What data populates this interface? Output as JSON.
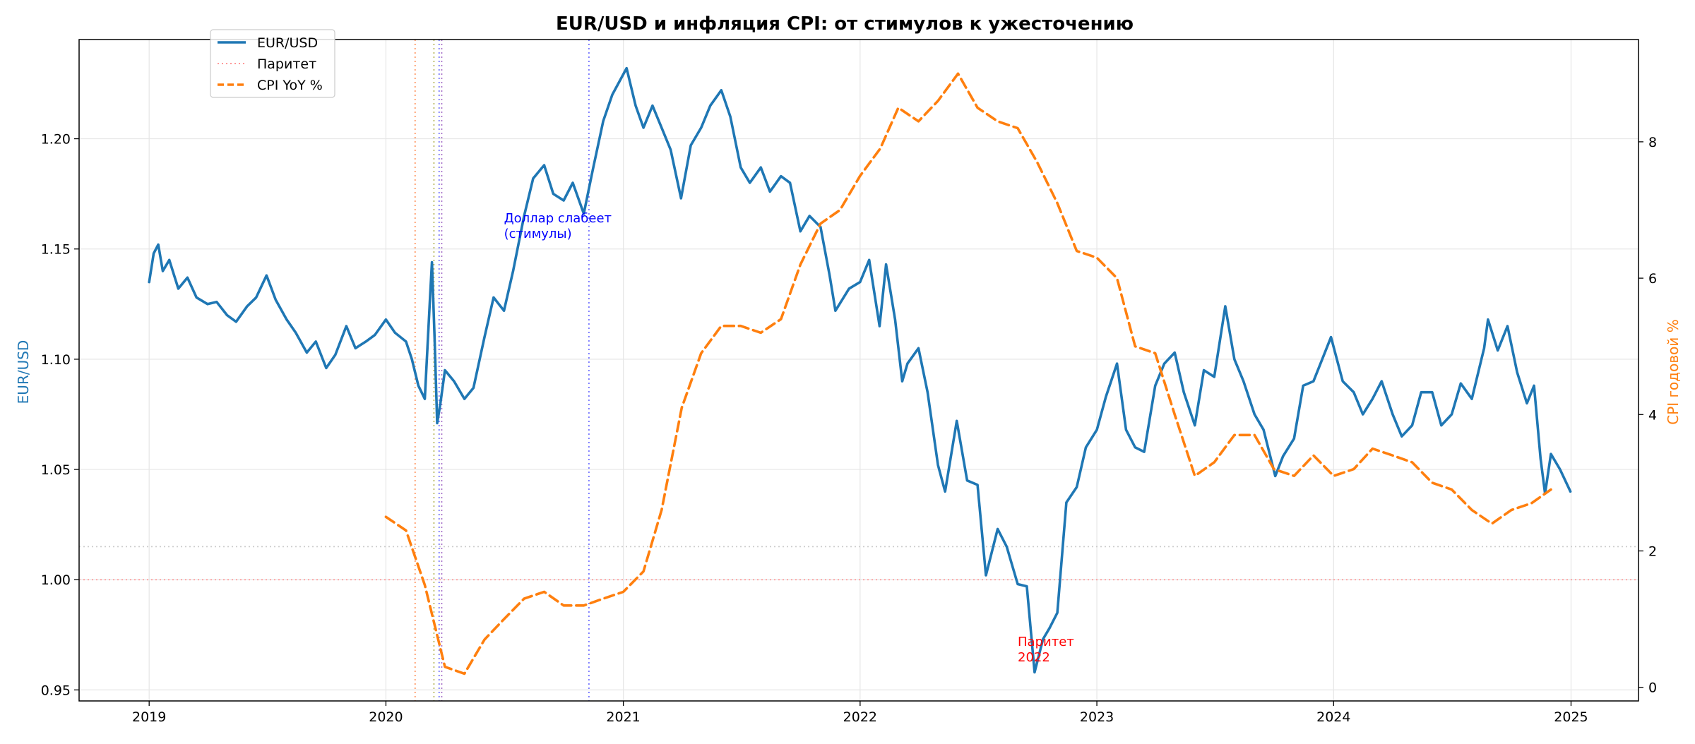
{
  "chart_data": {
    "type": "line",
    "title": "EUR/USD и инфляция CPI: от стимулов к ужесточению",
    "y_left_label": "EUR/USD",
    "y_right_label": "CPI годовой %",
    "x_range": [
      "2018-09-15",
      "2025-04-15"
    ],
    "y_left_range": [
      0.945,
      1.245
    ],
    "y_right_range": [
      -0.2,
      9.5
    ],
    "x_ticks": [
      {
        "date": "2019-01-01",
        "label": "2019"
      },
      {
        "date": "2020-01-01",
        "label": "2020"
      },
      {
        "date": "2021-01-01",
        "label": "2021"
      },
      {
        "date": "2022-01-01",
        "label": "2022"
      },
      {
        "date": "2023-01-01",
        "label": "2023"
      },
      {
        "date": "2024-01-01",
        "label": "2024"
      },
      {
        "date": "2025-01-01",
        "label": "2025"
      }
    ],
    "y_left_ticks": [
      "0.95",
      "1.00",
      "1.05",
      "1.10",
      "1.15",
      "1.20"
    ],
    "y_right_ticks": [
      "0",
      "2",
      "4",
      "6",
      "8"
    ],
    "grid": true,
    "legend_position": "top-left",
    "legend": [
      {
        "label": "EUR/USD",
        "style": "solid",
        "color": "#1f77b4"
      },
      {
        "label": "Паритет",
        "style": "dotted",
        "color": "#ff9999"
      },
      {
        "label": "CPI YoY %",
        "style": "dashed",
        "color": "#ff7f0e"
      }
    ],
    "series": [
      {
        "name": "EUR/USD",
        "axis": "left",
        "color": "#1f77b4",
        "points": [
          [
            "2019-01-01",
            1.135
          ],
          [
            "2019-01-08",
            1.148
          ],
          [
            "2019-01-15",
            1.152
          ],
          [
            "2019-01-22",
            1.14
          ],
          [
            "2019-02-01",
            1.145
          ],
          [
            "2019-02-15",
            1.132
          ],
          [
            "2019-03-01",
            1.137
          ],
          [
            "2019-03-15",
            1.128
          ],
          [
            "2019-04-01",
            1.125
          ],
          [
            "2019-04-15",
            1.126
          ],
          [
            "2019-05-01",
            1.12
          ],
          [
            "2019-05-15",
            1.117
          ],
          [
            "2019-06-01",
            1.124
          ],
          [
            "2019-06-15",
            1.128
          ],
          [
            "2019-07-01",
            1.138
          ],
          [
            "2019-07-15",
            1.127
          ],
          [
            "2019-08-01",
            1.118
          ],
          [
            "2019-08-15",
            1.112
          ],
          [
            "2019-09-01",
            1.103
          ],
          [
            "2019-09-15",
            1.108
          ],
          [
            "2019-10-01",
            1.096
          ],
          [
            "2019-10-15",
            1.102
          ],
          [
            "2019-11-01",
            1.115
          ],
          [
            "2019-11-15",
            1.105
          ],
          [
            "2019-12-01",
            1.108
          ],
          [
            "2019-12-15",
            1.111
          ],
          [
            "2020-01-01",
            1.118
          ],
          [
            "2020-01-15",
            1.112
          ],
          [
            "2020-02-01",
            1.108
          ],
          [
            "2020-02-10",
            1.1
          ],
          [
            "2020-02-20",
            1.088
          ],
          [
            "2020-03-01",
            1.082
          ],
          [
            "2020-03-09",
            1.128
          ],
          [
            "2020-03-12",
            1.144
          ],
          [
            "2020-03-16",
            1.11
          ],
          [
            "2020-03-20",
            1.071
          ],
          [
            "2020-03-25",
            1.08
          ],
          [
            "2020-04-01",
            1.095
          ],
          [
            "2020-04-15",
            1.09
          ],
          [
            "2020-05-01",
            1.082
          ],
          [
            "2020-05-15",
            1.087
          ],
          [
            "2020-06-01",
            1.11
          ],
          [
            "2020-06-15",
            1.128
          ],
          [
            "2020-07-01",
            1.122
          ],
          [
            "2020-07-15",
            1.14
          ],
          [
            "2020-08-01",
            1.165
          ],
          [
            "2020-08-15",
            1.182
          ],
          [
            "2020-09-01",
            1.188
          ],
          [
            "2020-09-15",
            1.175
          ],
          [
            "2020-10-01",
            1.172
          ],
          [
            "2020-10-15",
            1.18
          ],
          [
            "2020-11-01",
            1.166
          ],
          [
            "2020-11-15",
            1.186
          ],
          [
            "2020-12-01",
            1.208
          ],
          [
            "2020-12-15",
            1.22
          ],
          [
            "2021-01-06",
            1.232
          ],
          [
            "2021-01-20",
            1.215
          ],
          [
            "2021-02-01",
            1.205
          ],
          [
            "2021-02-15",
            1.215
          ],
          [
            "2021-03-01",
            1.205
          ],
          [
            "2021-03-15",
            1.195
          ],
          [
            "2021-03-31",
            1.173
          ],
          [
            "2021-04-15",
            1.197
          ],
          [
            "2021-05-01",
            1.205
          ],
          [
            "2021-05-15",
            1.215
          ],
          [
            "2021-06-01",
            1.222
          ],
          [
            "2021-06-15",
            1.21
          ],
          [
            "2021-07-01",
            1.187
          ],
          [
            "2021-07-15",
            1.18
          ],
          [
            "2021-08-01",
            1.187
          ],
          [
            "2021-08-15",
            1.176
          ],
          [
            "2021-09-01",
            1.183
          ],
          [
            "2021-09-15",
            1.18
          ],
          [
            "2021-10-01",
            1.158
          ],
          [
            "2021-10-15",
            1.165
          ],
          [
            "2021-11-01",
            1.16
          ],
          [
            "2021-11-15",
            1.138
          ],
          [
            "2021-11-24",
            1.122
          ],
          [
            "2021-12-15",
            1.132
          ],
          [
            "2022-01-01",
            1.135
          ],
          [
            "2022-01-15",
            1.145
          ],
          [
            "2022-01-31",
            1.115
          ],
          [
            "2022-02-10",
            1.143
          ],
          [
            "2022-02-24",
            1.118
          ],
          [
            "2022-03-07",
            1.09
          ],
          [
            "2022-03-15",
            1.098
          ],
          [
            "2022-04-01",
            1.105
          ],
          [
            "2022-04-15",
            1.085
          ],
          [
            "2022-05-01",
            1.052
          ],
          [
            "2022-05-12",
            1.04
          ],
          [
            "2022-05-30",
            1.072
          ],
          [
            "2022-06-15",
            1.045
          ],
          [
            "2022-07-01",
            1.043
          ],
          [
            "2022-07-14",
            1.002
          ],
          [
            "2022-08-01",
            1.023
          ],
          [
            "2022-08-15",
            1.015
          ],
          [
            "2022-09-01",
            0.998
          ],
          [
            "2022-09-15",
            0.997
          ],
          [
            "2022-09-27",
            0.958
          ],
          [
            "2022-10-10",
            0.973
          ],
          [
            "2022-10-20",
            0.978
          ],
          [
            "2022-11-01",
            0.985
          ],
          [
            "2022-11-15",
            1.035
          ],
          [
            "2022-12-01",
            1.042
          ],
          [
            "2022-12-15",
            1.06
          ],
          [
            "2023-01-01",
            1.068
          ],
          [
            "2023-01-15",
            1.083
          ],
          [
            "2023-02-01",
            1.098
          ],
          [
            "2023-02-15",
            1.068
          ],
          [
            "2023-03-01",
            1.06
          ],
          [
            "2023-03-15",
            1.058
          ],
          [
            "2023-04-01",
            1.088
          ],
          [
            "2023-04-15",
            1.098
          ],
          [
            "2023-05-01",
            1.103
          ],
          [
            "2023-05-15",
            1.085
          ],
          [
            "2023-06-01",
            1.07
          ],
          [
            "2023-06-15",
            1.095
          ],
          [
            "2023-07-01",
            1.092
          ],
          [
            "2023-07-18",
            1.124
          ],
          [
            "2023-08-01",
            1.1
          ],
          [
            "2023-08-15",
            1.09
          ],
          [
            "2023-09-01",
            1.075
          ],
          [
            "2023-09-15",
            1.068
          ],
          [
            "2023-10-03",
            1.047
          ],
          [
            "2023-10-15",
            1.056
          ],
          [
            "2023-11-01",
            1.064
          ],
          [
            "2023-11-15",
            1.088
          ],
          [
            "2023-12-01",
            1.09
          ],
          [
            "2023-12-28",
            1.11
          ],
          [
            "2024-01-15",
            1.09
          ],
          [
            "2024-02-01",
            1.085
          ],
          [
            "2024-02-15",
            1.075
          ],
          [
            "2024-03-01",
            1.082
          ],
          [
            "2024-03-15",
            1.09
          ],
          [
            "2024-04-01",
            1.075
          ],
          [
            "2024-04-15",
            1.065
          ],
          [
            "2024-05-01",
            1.07
          ],
          [
            "2024-05-15",
            1.085
          ],
          [
            "2024-06-01",
            1.085
          ],
          [
            "2024-06-15",
            1.07
          ],
          [
            "2024-07-01",
            1.075
          ],
          [
            "2024-07-15",
            1.089
          ],
          [
            "2024-08-01",
            1.082
          ],
          [
            "2024-08-20",
            1.105
          ],
          [
            "2024-08-26",
            1.118
          ],
          [
            "2024-09-10",
            1.104
          ],
          [
            "2024-09-25",
            1.115
          ],
          [
            "2024-10-10",
            1.094
          ],
          [
            "2024-10-25",
            1.08
          ],
          [
            "2024-11-05",
            1.088
          ],
          [
            "2024-11-15",
            1.055
          ],
          [
            "2024-11-22",
            1.039
          ],
          [
            "2024-12-01",
            1.057
          ],
          [
            "2024-12-15",
            1.05
          ],
          [
            "2024-12-31",
            1.04
          ]
        ]
      },
      {
        "name": "CPI YoY %",
        "axis": "right",
        "color": "#ff7f0e",
        "points": [
          [
            "2020-01-01",
            2.5
          ],
          [
            "2020-02-01",
            2.3
          ],
          [
            "2020-03-01",
            1.5
          ],
          [
            "2020-04-01",
            0.3
          ],
          [
            "2020-05-01",
            0.2
          ],
          [
            "2020-06-01",
            0.7
          ],
          [
            "2020-07-01",
            1.0
          ],
          [
            "2020-08-01",
            1.3
          ],
          [
            "2020-09-01",
            1.4
          ],
          [
            "2020-10-01",
            1.2
          ],
          [
            "2020-11-01",
            1.2
          ],
          [
            "2020-12-01",
            1.3
          ],
          [
            "2021-01-01",
            1.4
          ],
          [
            "2021-02-01",
            1.7
          ],
          [
            "2021-03-01",
            2.6
          ],
          [
            "2021-04-01",
            4.1
          ],
          [
            "2021-05-01",
            4.9
          ],
          [
            "2021-06-01",
            5.3
          ],
          [
            "2021-07-01",
            5.3
          ],
          [
            "2021-08-01",
            5.2
          ],
          [
            "2021-09-01",
            5.4
          ],
          [
            "2021-10-01",
            6.2
          ],
          [
            "2021-11-01",
            6.8
          ],
          [
            "2021-12-01",
            7.0
          ],
          [
            "2022-01-01",
            7.5
          ],
          [
            "2022-02-01",
            7.9
          ],
          [
            "2022-03-01",
            8.5
          ],
          [
            "2022-04-01",
            8.3
          ],
          [
            "2022-05-01",
            8.6
          ],
          [
            "2022-06-01",
            9.0
          ],
          [
            "2022-07-01",
            8.5
          ],
          [
            "2022-08-01",
            8.3
          ],
          [
            "2022-09-01",
            8.2
          ],
          [
            "2022-10-01",
            7.7
          ],
          [
            "2022-11-01",
            7.1
          ],
          [
            "2022-12-01",
            6.4
          ],
          [
            "2023-01-01",
            6.3
          ],
          [
            "2023-02-01",
            6.0
          ],
          [
            "2023-03-01",
            5.0
          ],
          [
            "2023-04-01",
            4.9
          ],
          [
            "2023-05-01",
            4.0
          ],
          [
            "2023-06-01",
            3.1
          ],
          [
            "2023-07-01",
            3.3
          ],
          [
            "2023-08-01",
            3.7
          ],
          [
            "2023-09-01",
            3.7
          ],
          [
            "2023-10-01",
            3.2
          ],
          [
            "2023-11-01",
            3.1
          ],
          [
            "2023-12-01",
            3.4
          ],
          [
            "2024-01-01",
            3.1
          ],
          [
            "2024-02-01",
            3.2
          ],
          [
            "2024-03-01",
            3.5
          ],
          [
            "2024-04-01",
            3.4
          ],
          [
            "2024-05-01",
            3.3
          ],
          [
            "2024-06-01",
            3.0
          ],
          [
            "2024-07-01",
            2.9
          ],
          [
            "2024-08-01",
            2.6
          ],
          [
            "2024-09-01",
            2.4
          ],
          [
            "2024-10-01",
            2.6
          ],
          [
            "2024-11-01",
            2.7
          ],
          [
            "2024-12-01",
            2.9
          ]
        ]
      }
    ],
    "reference_lines": [
      {
        "type": "horizontal",
        "axis": "left",
        "value": 1.0,
        "color": "#ff9999",
        "style": "dotted"
      },
      {
        "type": "horizontal",
        "axis": "left",
        "value": 1.015,
        "color": "#cccccc",
        "style": "dotted"
      },
      {
        "type": "vertical",
        "date": "2020-02-15",
        "color": "#ff9966",
        "style": "dotted"
      },
      {
        "type": "vertical",
        "date": "2020-03-15",
        "color": "#bbbb66",
        "style": "dotted"
      },
      {
        "type": "vertical",
        "date": "2020-03-23",
        "color": "#7777ff",
        "style": "dotted"
      },
      {
        "type": "vertical",
        "date": "2020-03-27",
        "color": "#aa77cc",
        "style": "dotted"
      },
      {
        "type": "vertical",
        "date": "2020-11-09",
        "color": "#7777ff",
        "style": "dotted"
      }
    ],
    "annotations": [
      {
        "lines": [
          "Доллар слабеет",
          "(стимулы)"
        ],
        "date": "2020-07-01",
        "value": 1.155,
        "color": "#0000ff"
      },
      {
        "lines": [
          "Паритет",
          "2022"
        ],
        "date": "2022-09-01",
        "value": 0.963,
        "color": "#ff0000"
      }
    ]
  }
}
